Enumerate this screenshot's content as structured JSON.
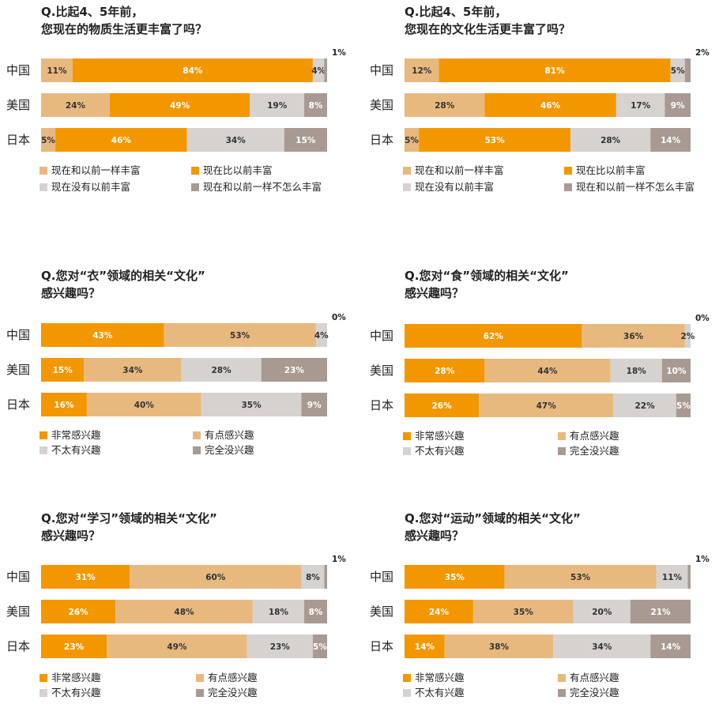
{
  "chart_data": [
    {
      "type": "bar",
      "orientation": "horizontal",
      "stacked": true,
      "title": [
        "Q.比起4、5年前，",
        "您现在的物质生活更丰富了吗？"
      ],
      "categories": [
        "中国",
        "美国",
        "日本"
      ],
      "xlim": [
        0,
        100
      ],
      "series": [
        {
          "name": "现在和以前一样丰富",
          "color": "#e8b97f",
          "values": [
            11,
            24,
            5
          ]
        },
        {
          "name": "现在比以前丰富",
          "color": "#f39700",
          "values": [
            84,
            49,
            46
          ]
        },
        {
          "name": "现在没有以前丰富",
          "color": "#d6d2cf",
          "values": [
            4,
            19,
            34
          ]
        },
        {
          "name": "现在和以前一样不怎么丰富",
          "color": "#a89a92",
          "values": [
            1,
            8,
            15
          ]
        }
      ],
      "labels": [
        [
          "11%",
          "84%",
          "4%",
          "1%"
        ],
        [
          "24%",
          "49%",
          "19%",
          "8%"
        ],
        [
          "5%",
          "46%",
          "34%",
          "15%"
        ]
      ]
    },
    {
      "type": "bar",
      "orientation": "horizontal",
      "stacked": true,
      "title": [
        "Q.比起4、5年前，",
        "您现在的文化生活更丰富了吗？"
      ],
      "categories": [
        "中国",
        "美国",
        "日本"
      ],
      "xlim": [
        0,
        100
      ],
      "series": [
        {
          "name": "现在和以前一样丰富",
          "color": "#e8b97f",
          "values": [
            12,
            28,
            5
          ]
        },
        {
          "name": "现在比以前丰富",
          "color": "#f39700",
          "values": [
            81,
            46,
            53
          ]
        },
        {
          "name": "现在没有以前丰富",
          "color": "#d6d2cf",
          "values": [
            5,
            17,
            28
          ]
        },
        {
          "name": "现在和以前一样不怎么丰富",
          "color": "#a89a92",
          "values": [
            2,
            9,
            14
          ]
        }
      ],
      "labels": [
        [
          "12%",
          "81%",
          "5%",
          "2%"
        ],
        [
          "28%",
          "46%",
          "17%",
          "9%"
        ],
        [
          "5%",
          "53%",
          "28%",
          "14%"
        ]
      ]
    },
    {
      "type": "bar",
      "orientation": "horizontal",
      "stacked": true,
      "title": [
        "Q.您对“衣”领域的相关“文化”",
        "感兴趣吗？"
      ],
      "categories": [
        "中国",
        "美国",
        "日本"
      ],
      "xlim": [
        0,
        100
      ],
      "series": [
        {
          "name": "非常感兴趣",
          "color": "#f39700",
          "values": [
            43,
            15,
            16
          ]
        },
        {
          "name": "有点感兴趣",
          "color": "#e8b97f",
          "values": [
            53,
            34,
            40
          ]
        },
        {
          "name": "不太有兴趣",
          "color": "#d6d2cf",
          "values": [
            4,
            28,
            35
          ]
        },
        {
          "name": "完全没兴趣",
          "color": "#a89a92",
          "values": [
            0,
            23,
            9
          ]
        }
      ],
      "labels": [
        [
          "43%",
          "53%",
          "4%",
          "0%"
        ],
        [
          "15%",
          "34%",
          "28%",
          "23%"
        ],
        [
          "16%",
          "40%",
          "35%",
          "9%"
        ]
      ]
    },
    {
      "type": "bar",
      "orientation": "horizontal",
      "stacked": true,
      "title": [
        "Q.您对“食”领域的相关“文化”",
        "感兴趣吗？"
      ],
      "categories": [
        "中国",
        "美国",
        "日本"
      ],
      "xlim": [
        0,
        100
      ],
      "series": [
        {
          "name": "非常感兴趣",
          "color": "#f39700",
          "values": [
            62,
            28,
            26
          ]
        },
        {
          "name": "有点感兴趣",
          "color": "#e8b97f",
          "values": [
            36,
            44,
            47
          ]
        },
        {
          "name": "不太有兴趣",
          "color": "#d6d2cf",
          "values": [
            2,
            18,
            22
          ]
        },
        {
          "name": "完全没兴趣",
          "color": "#a89a92",
          "values": [
            0,
            10,
            5
          ]
        }
      ],
      "labels": [
        [
          "62%",
          "36%",
          "2%",
          "0%"
        ],
        [
          "28%",
          "44%",
          "18%",
          "10%"
        ],
        [
          "26%",
          "47%",
          "22%",
          "5%"
        ]
      ]
    },
    {
      "type": "bar",
      "orientation": "horizontal",
      "stacked": true,
      "title": [
        "Q.您对“学习”领域的相关“文化”",
        "感兴趣吗？"
      ],
      "categories": [
        "中国",
        "美国",
        "日本"
      ],
      "xlim": [
        0,
        100
      ],
      "series": [
        {
          "name": "非常感兴趣",
          "color": "#f39700",
          "values": [
            31,
            26,
            23
          ]
        },
        {
          "name": "有点感兴趣",
          "color": "#e8b97f",
          "values": [
            60,
            48,
            49
          ]
        },
        {
          "name": "不太有兴趣",
          "color": "#d6d2cf",
          "values": [
            8,
            18,
            23
          ]
        },
        {
          "name": "完全没兴趣",
          "color": "#a89a92",
          "values": [
            1,
            8,
            5
          ]
        }
      ],
      "labels": [
        [
          "31%",
          "60%",
          "8%",
          "1%"
        ],
        [
          "26%",
          "48%",
          "18%",
          "8%"
        ],
        [
          "23%",
          "49%",
          "23%",
          "5%"
        ]
      ]
    },
    {
      "type": "bar",
      "orientation": "horizontal",
      "stacked": true,
      "title": [
        "Q.您对“运动”领域的相关“文化”",
        "感兴趣吗？"
      ],
      "categories": [
        "中国",
        "美国",
        "日本"
      ],
      "xlim": [
        0,
        100
      ],
      "series": [
        {
          "name": "非常感兴趣",
          "color": "#f39700",
          "values": [
            35,
            24,
            14
          ]
        },
        {
          "name": "有点感兴趣",
          "color": "#e8b97f",
          "values": [
            53,
            35,
            38
          ]
        },
        {
          "name": "不太有兴趣",
          "color": "#d6d2cf",
          "values": [
            11,
            20,
            34
          ]
        },
        {
          "name": "完全没兴趣",
          "color": "#a89a92",
          "values": [
            1,
            21,
            14
          ]
        }
      ],
      "labels": [
        [
          "35%",
          "53%",
          "11%",
          "1%"
        ],
        [
          "24%",
          "35%",
          "20%",
          "21%"
        ],
        [
          "14%",
          "38%",
          "34%",
          "14%"
        ]
      ]
    }
  ]
}
